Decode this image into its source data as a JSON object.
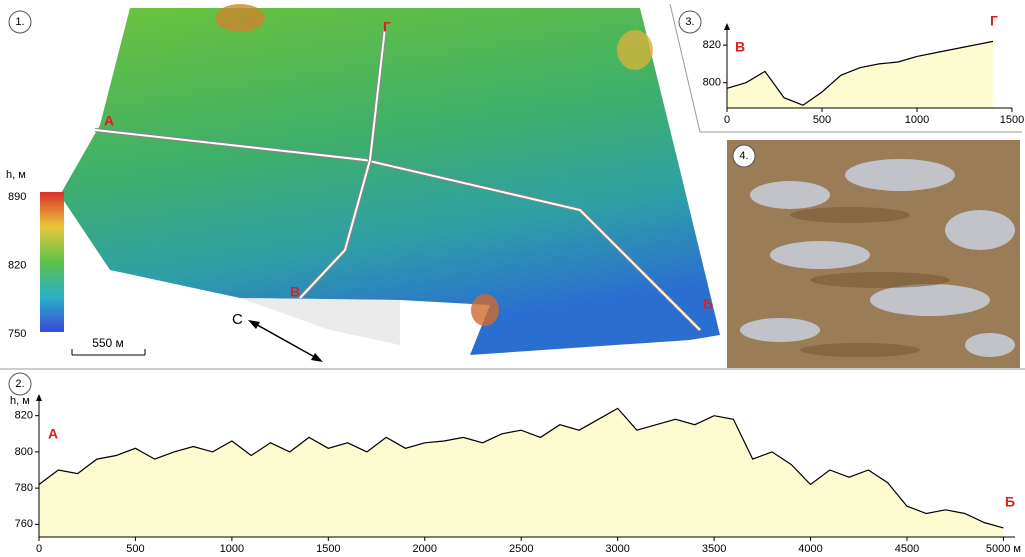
{
  "chart_data": [
    {
      "type": "area",
      "panel_label": "2.",
      "y_label": "h, м",
      "start_label": "А",
      "end_label": "Б",
      "x": [
        0,
        100,
        200,
        300,
        400,
        500,
        600,
        700,
        800,
        900,
        1000,
        1100,
        1200,
        1300,
        1400,
        1500,
        1600,
        1700,
        1800,
        1900,
        2000,
        2100,
        2200,
        2300,
        2400,
        2500,
        2600,
        2700,
        2800,
        2900,
        3000,
        3100,
        3200,
        3300,
        3400,
        3500,
        3600,
        3700,
        3800,
        3900,
        4000,
        4100,
        4200,
        4300,
        4400,
        4500,
        4600,
        4700,
        4800,
        4900,
        5000
      ],
      "values": [
        782,
        790,
        788,
        796,
        798,
        802,
        796,
        800,
        803,
        800,
        806,
        798,
        805,
        800,
        808,
        802,
        805,
        800,
        808,
        802,
        805,
        806,
        808,
        805,
        810,
        812,
        808,
        815,
        812,
        818,
        824,
        812,
        815,
        818,
        815,
        820,
        818,
        796,
        800,
        793,
        782,
        790,
        786,
        790,
        783,
        770,
        766,
        768,
        766,
        761,
        758
      ],
      "color": "#000000",
      "fill": "#fdfbd0",
      "xlim": [
        0,
        5060
      ],
      "ylim": [
        753,
        827
      ],
      "xticks": [
        0,
        500,
        1000,
        1500,
        2000,
        2500,
        3000,
        3500,
        4000,
        4500,
        {
          "value": 5000,
          "label": "5000 м"
        }
      ],
      "yticks": [
        760,
        780,
        800,
        820
      ]
    },
    {
      "type": "area",
      "panel_label": "3.",
      "start_label": "В",
      "end_label": "Г",
      "x": [
        0,
        100,
        200,
        300,
        400,
        500,
        600,
        700,
        800,
        900,
        1000,
        1100,
        1200,
        1300,
        1400
      ],
      "values": [
        797,
        800,
        806,
        792,
        788,
        795,
        804,
        808,
        810,
        811,
        814,
        816,
        818,
        820,
        822
      ],
      "color": "#000000",
      "fill": "#fdfbd0",
      "xlim": [
        0,
        1500
      ],
      "ylim": [
        786.5,
        827
      ],
      "xticks": [
        0,
        500,
        1000,
        1500
      ],
      "yticks": [
        800,
        820
      ]
    }
  ],
  "map": {
    "panel_label": "1.",
    "points": [
      "А",
      "Б",
      "В",
      "Г"
    ],
    "colorbar": {
      "title": "h, м",
      "ticks": [
        890,
        820,
        750
      ]
    },
    "scale_bar": "550 м",
    "north": "С"
  },
  "photo": {
    "panel_label": "4."
  }
}
